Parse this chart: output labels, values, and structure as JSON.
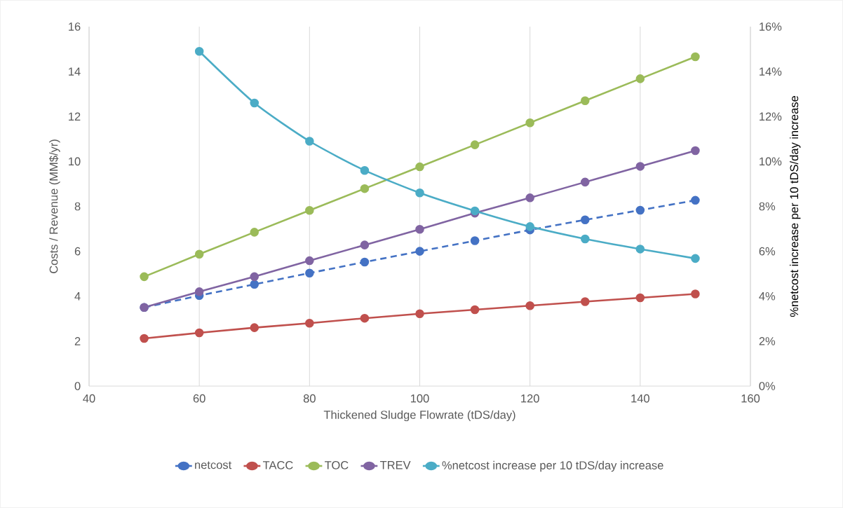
{
  "chart_data": {
    "type": "line",
    "xlabel": "Thickened Sludge Flowrate (tDS/day)",
    "ylabel": "Costs / Revenue (MM$/yr)",
    "y2label": "%netcost increase per 10 tDS/day increase",
    "x": [
      50,
      60,
      70,
      80,
      90,
      100,
      110,
      120,
      130,
      140,
      150
    ],
    "series": [
      {
        "name": "netcost",
        "color": "#4472c4",
        "line_style": "dashed",
        "values": [
          3.5,
          4.03,
          4.53,
          5.03,
          5.52,
          6.0,
          6.47,
          6.95,
          7.4,
          7.83,
          8.27
        ]
      },
      {
        "name": "TACC",
        "color": "#c0504d",
        "values": [
          2.12,
          2.37,
          2.6,
          2.8,
          3.02,
          3.22,
          3.4,
          3.58,
          3.76,
          3.93,
          4.1
        ]
      },
      {
        "name": "TOC",
        "color": "#9bbb59",
        "values": [
          4.87,
          5.87,
          6.85,
          7.82,
          8.79,
          9.76,
          10.74,
          11.72,
          12.7,
          13.68,
          14.66
        ]
      },
      {
        "name": "TREV",
        "color": "#8064a2",
        "values": [
          3.5,
          4.2,
          4.87,
          5.58,
          6.28,
          6.98,
          7.7,
          8.38,
          9.08,
          9.78,
          10.48
        ]
      },
      {
        "name": "%netcost increase per 10 tDS/day increase",
        "color": "#4bacc6",
        "axis": "y2",
        "x": [
          60,
          70,
          80,
          90,
          100,
          110,
          120,
          130,
          140,
          150
        ],
        "values": [
          14.9,
          12.6,
          10.9,
          9.6,
          8.6,
          7.8,
          7.1,
          6.55,
          6.1,
          5.68
        ]
      }
    ],
    "xlim": [
      40,
      160
    ],
    "xticks": [
      40,
      60,
      80,
      100,
      120,
      140,
      160
    ],
    "ylim": [
      0,
      16
    ],
    "yticks": [
      0,
      2,
      4,
      6,
      8,
      10,
      12,
      14,
      16
    ],
    "y2lim": [
      0,
      16
    ],
    "y2ticks": [
      {
        "value": 0,
        "label": "0%"
      },
      {
        "value": 2,
        "label": "2%"
      },
      {
        "value": 4,
        "label": "4%"
      },
      {
        "value": 6,
        "label": "6%"
      },
      {
        "value": 8,
        "label": "8%"
      },
      {
        "value": 10,
        "label": "10%"
      },
      {
        "value": 12,
        "label": "12%"
      },
      {
        "value": 14,
        "label": "14%"
      },
      {
        "value": 16,
        "label": "16%"
      }
    ],
    "grid": "x",
    "legend": "bottom",
    "marker": "circle",
    "line_style": "solid"
  }
}
